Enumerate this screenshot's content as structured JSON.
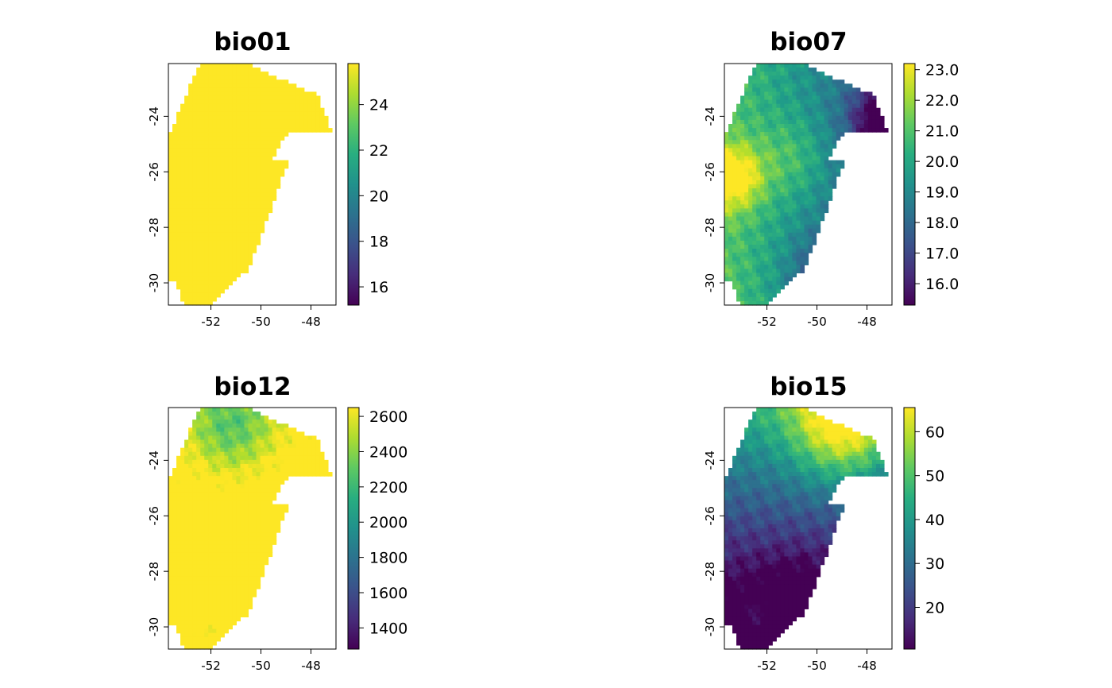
{
  "figure": {
    "layout": "2x2 raster map panels"
  },
  "chart_data": [
    {
      "type": "heatmap",
      "title": "bio01",
      "colormap": "viridis",
      "pattern": "bio01",
      "x_ticks": [
        "-52",
        "-50",
        "-48"
      ],
      "y_ticks": [
        "-24",
        "-26",
        "-28",
        "-30"
      ],
      "xlim": [
        -53.7,
        -47.0
      ],
      "ylim": [
        -30.8,
        -22.1
      ],
      "legend": {
        "ticks": [
          "24",
          "22",
          "20",
          "18",
          "16"
        ],
        "values": [
          24,
          22,
          20,
          18,
          16
        ],
        "range": [
          15.2,
          25.8
        ]
      }
    },
    {
      "type": "heatmap",
      "title": "bio07",
      "colormap": "viridis",
      "pattern": "bio07",
      "x_ticks": [
        "-52",
        "-50",
        "-48"
      ],
      "y_ticks": [
        "-24",
        "-26",
        "-28",
        "-30"
      ],
      "xlim": [
        -53.7,
        -47.0
      ],
      "ylim": [
        -30.8,
        -22.1
      ],
      "legend": {
        "ticks": [
          "23.0",
          "22.0",
          "21.0",
          "20.0",
          "19.0",
          "18.0",
          "17.0",
          "16.0"
        ],
        "values": [
          23,
          22,
          21,
          20,
          19,
          18,
          17,
          16
        ],
        "range": [
          15.3,
          23.2
        ]
      }
    },
    {
      "type": "heatmap",
      "title": "bio12",
      "colormap": "viridis",
      "pattern": "bio12",
      "x_ticks": [
        "-52",
        "-50",
        "-48"
      ],
      "y_ticks": [
        "-24",
        "-26",
        "-28",
        "-30"
      ],
      "xlim": [
        -53.7,
        -47.0
      ],
      "ylim": [
        -30.8,
        -22.1
      ],
      "legend": {
        "ticks": [
          "2600",
          "2400",
          "2200",
          "2000",
          "1800",
          "1600",
          "1400"
        ],
        "values": [
          2600,
          2400,
          2200,
          2000,
          1800,
          1600,
          1400
        ],
        "range": [
          1280,
          2650
        ]
      }
    },
    {
      "type": "heatmap",
      "title": "bio15",
      "colormap": "viridis",
      "pattern": "bio15",
      "x_ticks": [
        "-52",
        "-50",
        "-48"
      ],
      "y_ticks": [
        "-24",
        "-26",
        "-28",
        "-30"
      ],
      "xlim": [
        -53.7,
        -47.0
      ],
      "ylim": [
        -30.8,
        -22.1
      ],
      "legend": {
        "ticks": [
          "60",
          "50",
          "40",
          "30",
          "20"
        ],
        "values": [
          60,
          50,
          40,
          30,
          20
        ],
        "range": [
          10.5,
          65.5
        ]
      }
    }
  ]
}
